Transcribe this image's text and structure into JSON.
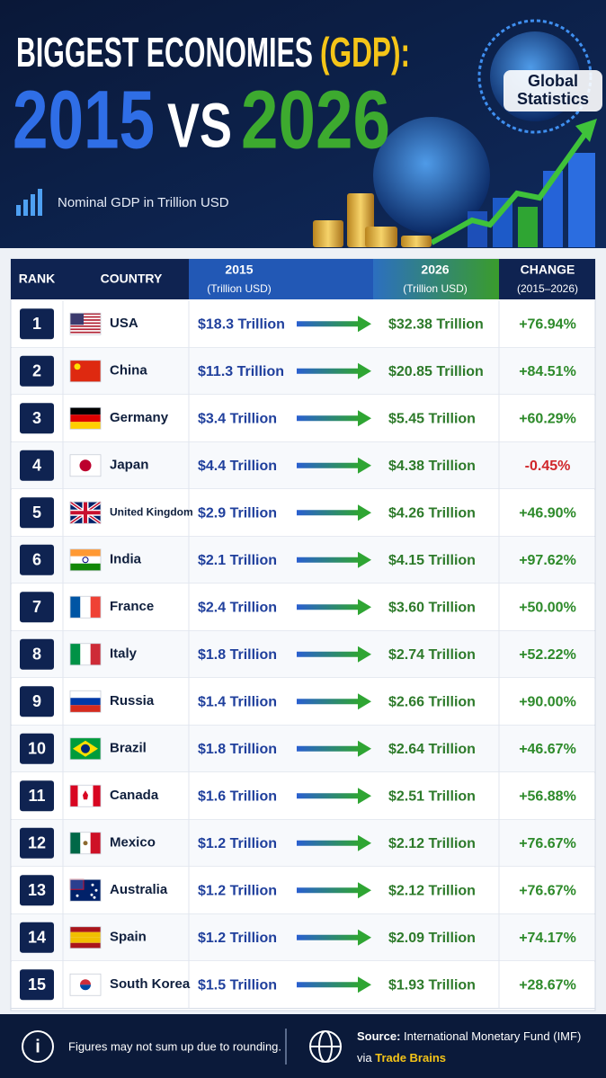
{
  "header": {
    "title_part1": "BIGGEST ECONOMIES",
    "title_part2": "(GDP):",
    "year1": "2015",
    "vs": "VS",
    "year2": "2026",
    "subtitle": "Nominal GDP in Trillion USD",
    "badge_line1": "Global",
    "badge_line2": "Statistics"
  },
  "table": {
    "columns": [
      {
        "title": "RANK"
      },
      {
        "title": "COUNTRY"
      },
      {
        "title": "2015",
        "subtitle": "(Trillion USD)"
      },
      {
        "title": "2026",
        "subtitle": "(Trillion USD)"
      },
      {
        "title": "CHANGE",
        "subtitle": "(2015–2026)"
      }
    ],
    "rows": [
      [
        "1",
        "USA",
        "$18.3 Trillion",
        "$32.38 Trillion",
        "+76.94%"
      ],
      [
        "2",
        "China",
        "$11.3 Trillion",
        "$20.85 Trillion",
        "+84.51%"
      ],
      [
        "3",
        "Germany",
        "$3.4 Trillion",
        "$5.45 Trillion",
        "+60.29%"
      ],
      [
        "4",
        "Japan",
        "$4.4 Trillion",
        "$4.38 Trillion",
        "-0.45%"
      ],
      [
        "5",
        "United Kingdom",
        "$2.9 Trillion",
        "$4.26 Trillion",
        "+46.90%"
      ],
      [
        "6",
        "India",
        "$2.1 Trillion",
        "$4.15 Trillion",
        "+97.62%"
      ],
      [
        "7",
        "France",
        "$2.4 Trillion",
        "$3.60 Trillion",
        "+50.00%"
      ],
      [
        "8",
        "Italy",
        "$1.8 Trillion",
        "$2.74 Trillion",
        "+52.22%"
      ],
      [
        "9",
        "Russia",
        "$1.4 Trillion",
        "$2.66 Trillion",
        "+90.00%"
      ],
      [
        "10",
        "Brazil",
        "$1.8 Trillion",
        "$2.64 Trillion",
        "+46.67%"
      ],
      [
        "11",
        "Canada",
        "$1.6 Trillion",
        "$2.51 Trillion",
        "+56.88%"
      ],
      [
        "12",
        "Mexico",
        "$1.2 Trillion",
        "$2.12 Trillion",
        "+76.67%"
      ],
      [
        "13",
        "Australia",
        "$1.2 Trillion",
        "$2.12 Trillion",
        "+76.67%"
      ],
      [
        "14",
        "Spain",
        "$1.2 Trillion",
        "$2.09 Trillion",
        "+74.17%"
      ],
      [
        "15",
        "South Korea",
        "$1.5 Trillion",
        "$1.93 Trillion",
        "+28.67%"
      ]
    ]
  },
  "footer": {
    "note": "Figures may not sum up due to rounding.",
    "source_label": "Source:",
    "source": "International Monetary Fund (IMF)",
    "via": "via",
    "via_name": "Trade Brains"
  }
}
